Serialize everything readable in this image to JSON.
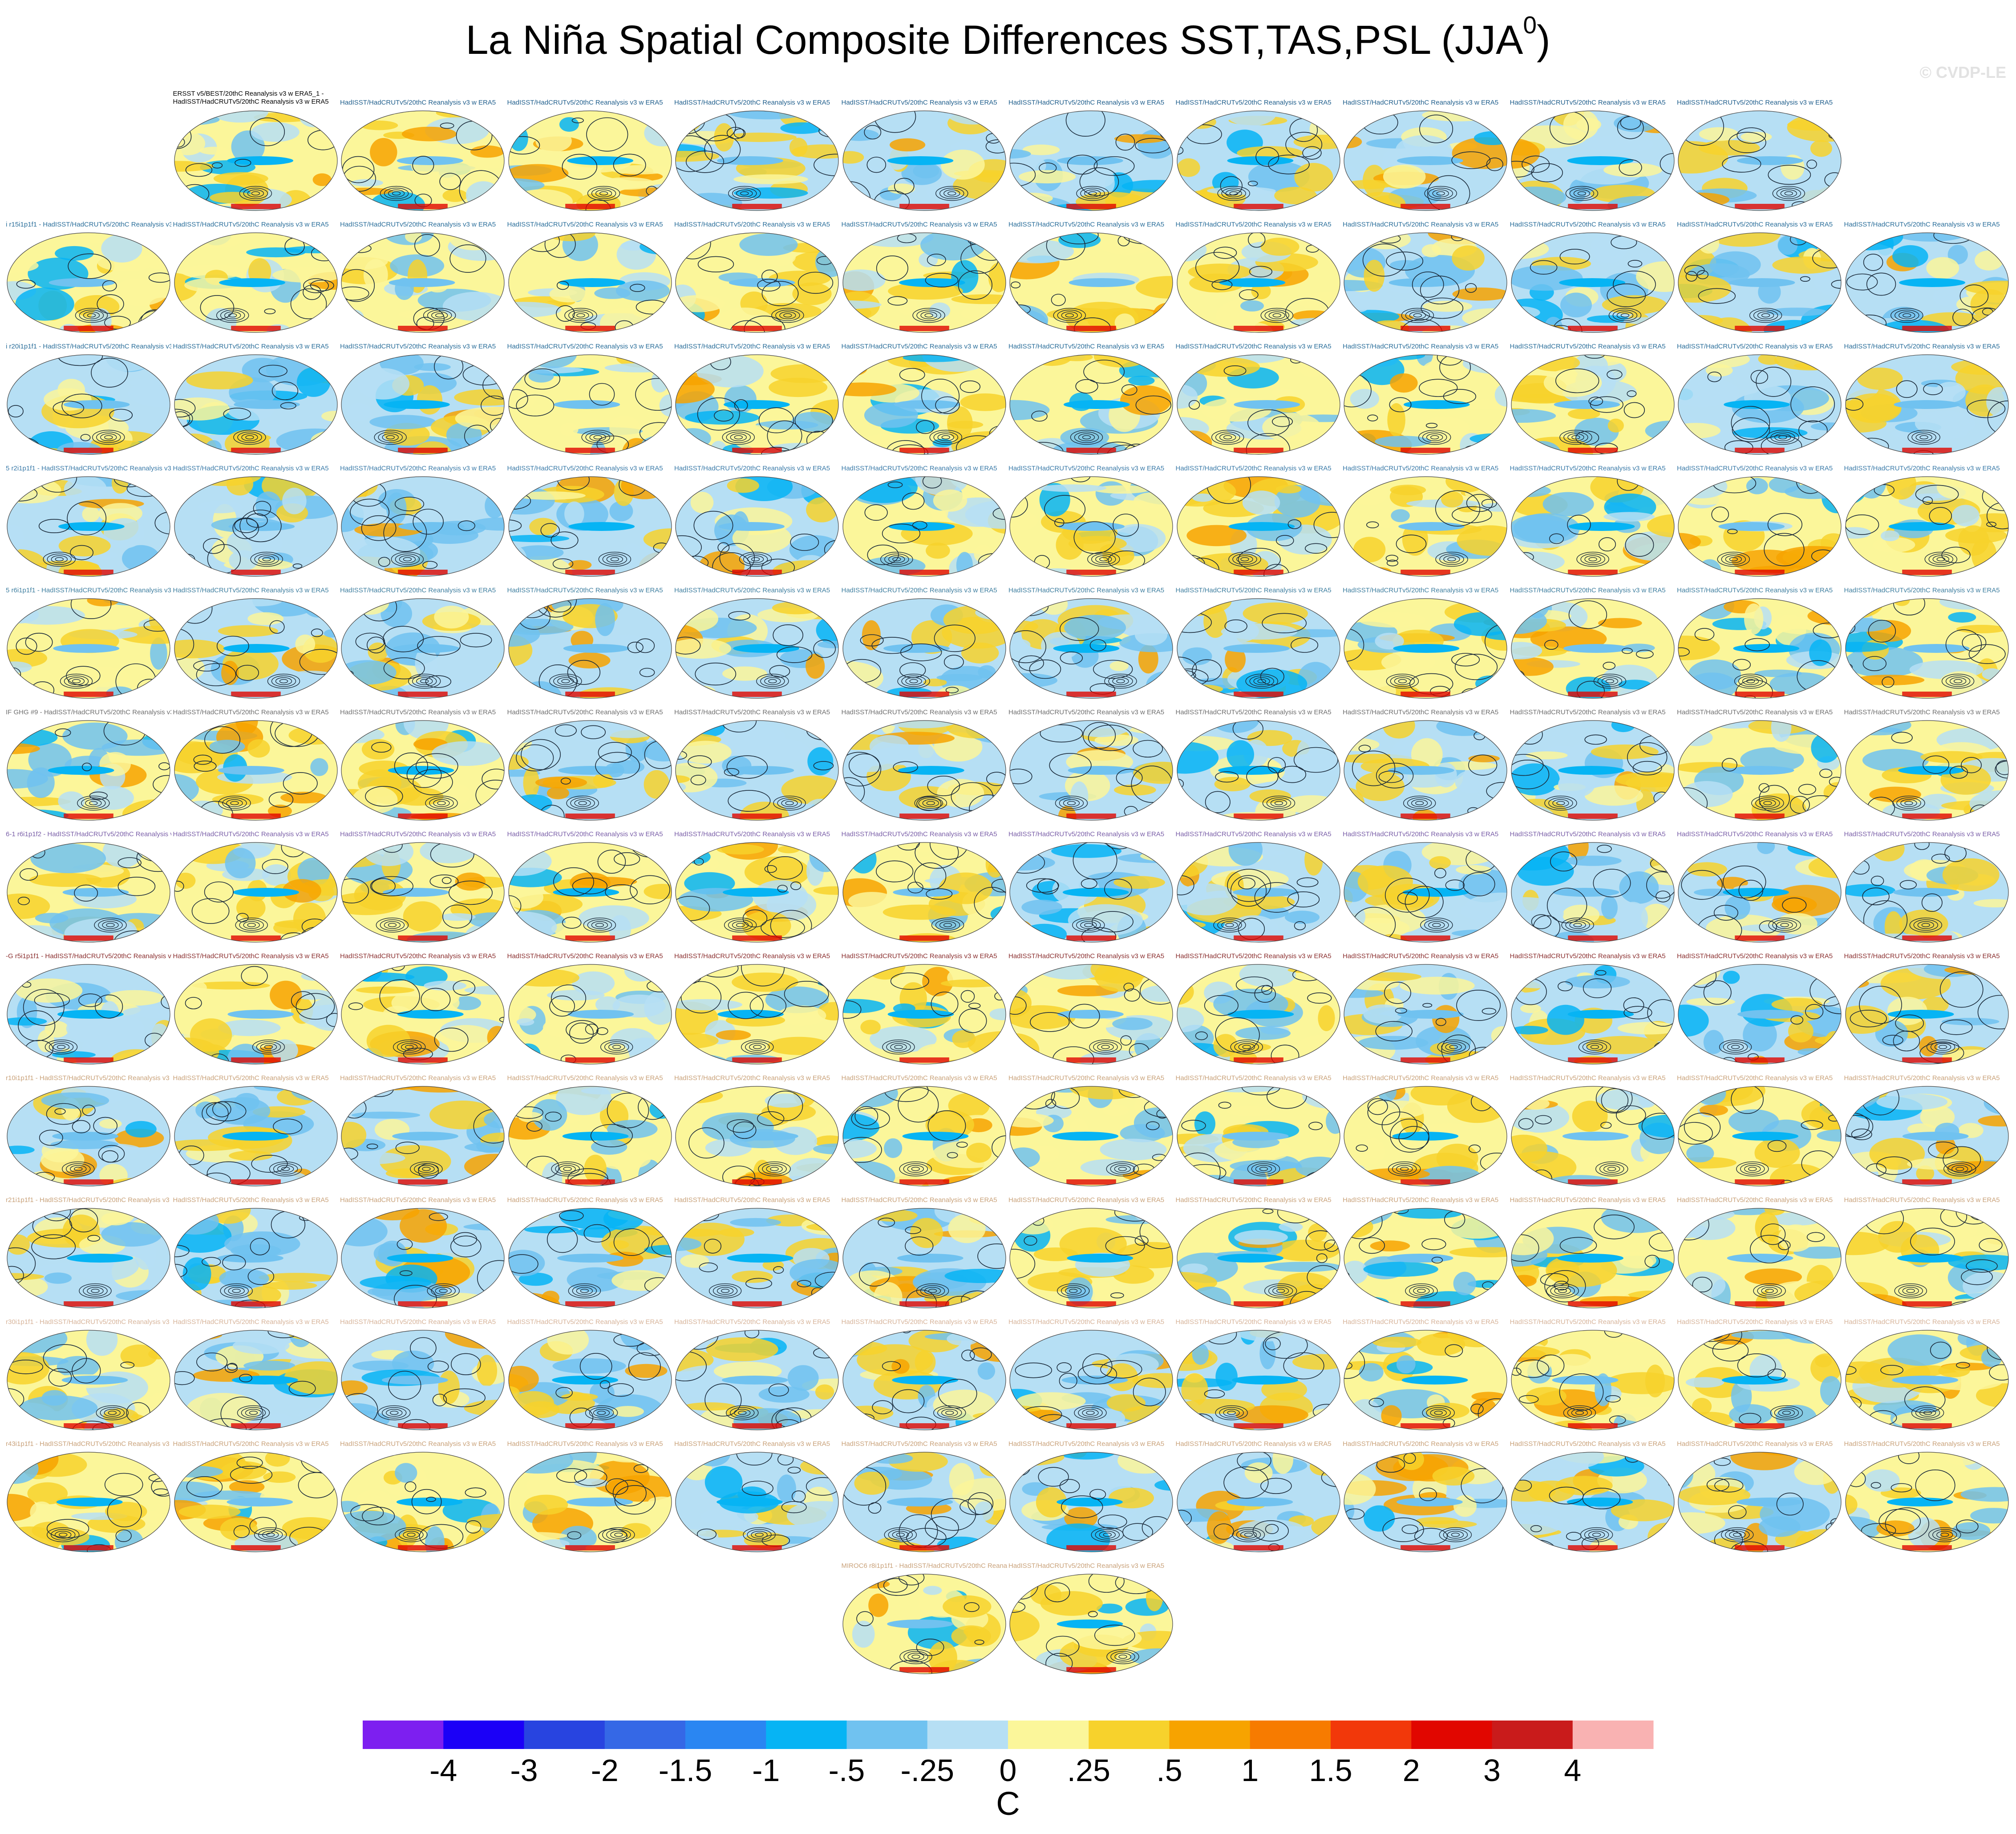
{
  "title": {
    "text": "La Niña Spatial Composite Differences SST,TAS,PSL (JJA",
    "superscript": "0",
    "suffix": ")"
  },
  "watermark": "© CVDP-LE",
  "first_panel_label": [
    "ERSST v5/BEST/20thC Reanalysis v3 w ERA5_1 -",
    "HadISST/HadCRUTv5/20thC Reanalysis v3 w ERA5"
  ],
  "panel_label_default": "HadISST/HadCRUTv5/20thC Reanalysis v3 w ERA5",
  "rows": [
    {
      "count": 10,
      "offset": 1,
      "label_color": "#1f5e8c",
      "row_label": ""
    },
    {
      "count": 12,
      "offset": 0,
      "label_color": "#2a6e9a",
      "row_label": "i r15i1p1f1"
    },
    {
      "count": 12,
      "offset": 0,
      "label_color": "#2a6e9a",
      "row_label": "i r20i1p1f1"
    },
    {
      "count": 12,
      "offset": 0,
      "label_color": "#3a7aa8",
      "row_label": "5 r2i1p1f1"
    },
    {
      "count": 12,
      "offset": 0,
      "label_color": "#3f7fa0",
      "row_label": "5 r6i1p1f1"
    },
    {
      "count": 12,
      "offset": 0,
      "label_color": "#6f6f6f",
      "row_label": "IF GHG #9"
    },
    {
      "count": 12,
      "offset": 0,
      "label_color": "#7a5fa8",
      "row_label": "6-1 r6i1p1f2"
    },
    {
      "count": 12,
      "offset": 0,
      "label_color": "#8a2f2f",
      "row_label": "-G r5i1p1f1"
    },
    {
      "count": 12,
      "offset": 0,
      "label_color": "#c9a27a",
      "row_label": "r10i1p1f1"
    },
    {
      "count": 12,
      "offset": 0,
      "label_color": "#c9a27a",
      "row_label": "r21i1p1f1"
    },
    {
      "count": 12,
      "offset": 0,
      "label_color": "#d7b49a",
      "row_label": "r30i1p1f1"
    },
    {
      "count": 12,
      "offset": 0,
      "label_color": "#c9a27a",
      "row_label": "r43i1p1f1"
    },
    {
      "count": 2,
      "offset": 5,
      "label_color": "#c9a27a",
      "row_label": "MIROC6 r8i1p1f1"
    }
  ],
  "chart_data": {
    "type": "heatmap",
    "title": "La Niña Spatial Composite Differences SST,TAS,PSL (JJA0)",
    "panel_count": 144,
    "contour_variable": "PSL",
    "shaded_variables": [
      "SST",
      "TAS"
    ],
    "colorbar": {
      "unit": "C",
      "tick_labels": [
        "-4",
        "-3",
        "-2",
        "-1.5",
        "-1",
        "-.5",
        "-.25",
        "0",
        ".25",
        ".5",
        "1",
        "1.5",
        "2",
        "3",
        "4"
      ],
      "levels": [
        -4,
        -3,
        -2,
        -1.5,
        -1,
        -0.5,
        -0.25,
        0,
        0.25,
        0.5,
        1,
        1.5,
        2,
        3,
        4
      ],
      "colors": [
        "#7d1ff0",
        "#1b00f7",
        "#2844e0",
        "#3568e6",
        "#2a86f2",
        "#06b4f4",
        "#70c2f0",
        "#b6dff4",
        "#fbf69a",
        "#f7d22c",
        "#f7a300",
        "#f77b00",
        "#f2380a",
        "#e10600",
        "#c91b1b",
        "#f9b2b2"
      ]
    }
  }
}
